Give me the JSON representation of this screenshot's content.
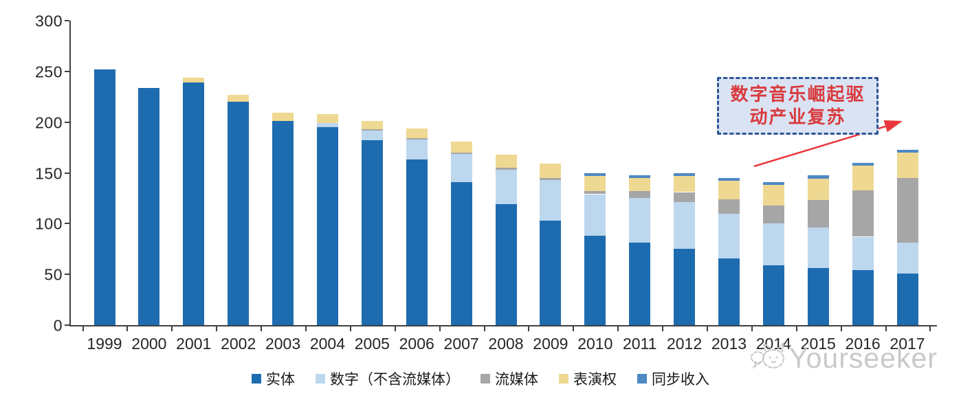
{
  "chart_data": {
    "type": "bar",
    "stacked": true,
    "title": "",
    "categories": [
      "1999",
      "2000",
      "2001",
      "2002",
      "2003",
      "2004",
      "2005",
      "2006",
      "2007",
      "2008",
      "2009",
      "2010",
      "2011",
      "2012",
      "2013",
      "2014",
      "2015",
      "2016",
      "2017"
    ],
    "series": [
      {
        "name": "实体",
        "color": "#1E6CB0",
        "values": [
          252,
          234,
          239,
          220,
          201,
          195,
          182,
          163,
          141,
          119,
          103,
          88,
          81,
          75,
          66,
          59,
          56,
          54,
          51
        ]
      },
      {
        "name": "数字（不含流媒体）",
        "color": "#BDD7EE",
        "values": [
          0,
          0,
          0,
          0,
          0,
          4,
          10,
          20,
          28,
          34,
          40,
          41,
          44,
          46,
          44,
          41,
          40,
          33,
          30
        ]
      },
      {
        "name": "流媒体",
        "color": "#A6A6A6",
        "values": [
          0,
          0,
          0,
          0,
          0,
          0,
          1,
          1,
          1,
          2,
          2,
          3,
          7,
          10,
          14,
          18,
          27,
          46,
          64
        ]
      },
      {
        "name": "表演权",
        "color": "#EFD992",
        "values": [
          0,
          0,
          5,
          7,
          8,
          9,
          8,
          10,
          11,
          13,
          14,
          15,
          13,
          16,
          18,
          20,
          21,
          24,
          25
        ]
      },
      {
        "name": "同步收入",
        "color": "#4D88C4",
        "values": [
          0,
          0,
          0,
          0,
          0,
          0,
          0,
          0,
          0,
          0,
          0,
          3,
          3,
          3,
          3,
          3,
          4,
          3,
          3
        ]
      }
    ],
    "ylim": [
      0,
      300
    ],
    "yticks": [
      0,
      50,
      100,
      150,
      200,
      250,
      300
    ],
    "grid": false,
    "legend_position": "bottom",
    "xlabel": "",
    "ylabel": ""
  },
  "annotation": {
    "text": "数字音乐崛起驱动产业复苏",
    "lines": [
      "数字音乐崛起驱",
      "动产业复苏"
    ],
    "text_color": "#D93A3E",
    "fill_color": "#DAE3F3",
    "border_color": "#2F5496",
    "arrow_color": "#E8383D"
  },
  "watermark": {
    "text": "Yourseeker",
    "color": "#C9C9C9"
  },
  "colors": {
    "axis": "#3F3F3F",
    "label": "#262626",
    "background": "#FFFFFF"
  }
}
